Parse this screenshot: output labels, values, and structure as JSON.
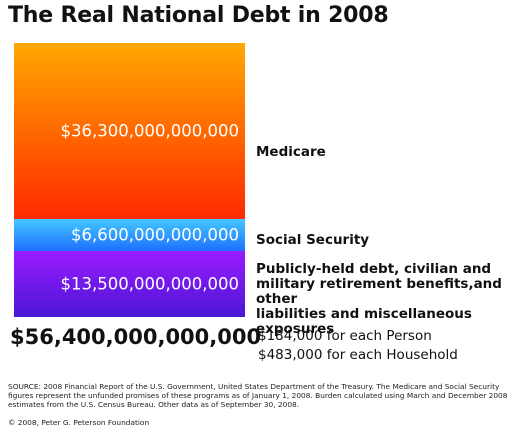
{
  "title": "The Real National Debt in 2008",
  "chart_data": {
    "type": "bar",
    "stacked": true,
    "title": "The Real National Debt in 2008",
    "segments": [
      {
        "name": "Medicare",
        "value_label": "$36,300,000,000,000",
        "value": 36300000000000,
        "color_top": "#ffa800",
        "color_bottom": "#ff2a00"
      },
      {
        "name": "Social Security",
        "value_label": "$6,600,000,000,000",
        "value": 6600000000000,
        "color_top": "#44c8ff",
        "color_bottom": "#1e70ff"
      },
      {
        "name": "Publicly-held debt, civilian and military retirement benefits,and other liabilities and miscellaneous exposures",
        "value_label": "$13,500,000,000,000",
        "value": 13500000000000,
        "color_top": "#9a1cff",
        "color_bottom": "#4a16d4"
      }
    ],
    "total_label": "$56,400,000,000,000",
    "total": 56400000000000
  },
  "labels": {
    "medicare": "Medicare",
    "social_security": "Social Security",
    "public_debt": [
      "Publicly-held debt, civilian and",
      "military retirement benefits,and other",
      "liabilities and miscellaneous exposures"
    ]
  },
  "burden": {
    "person": "$184,000 for each Person",
    "household": "$483,000 for each Household"
  },
  "source": "SOURCE: 2008 Financial Report of the U.S. Government, United States Department of the Treasury.  The Medicare and Social Security figures represent the unfunded promises of these programs as of January 1, 2008. Burden calculated using March and December 2008 estimates from the U.S. Census Bureau.  Other data as of September 30, 2008.",
  "copyright": "© 2008, Peter G. Peterson Foundation"
}
